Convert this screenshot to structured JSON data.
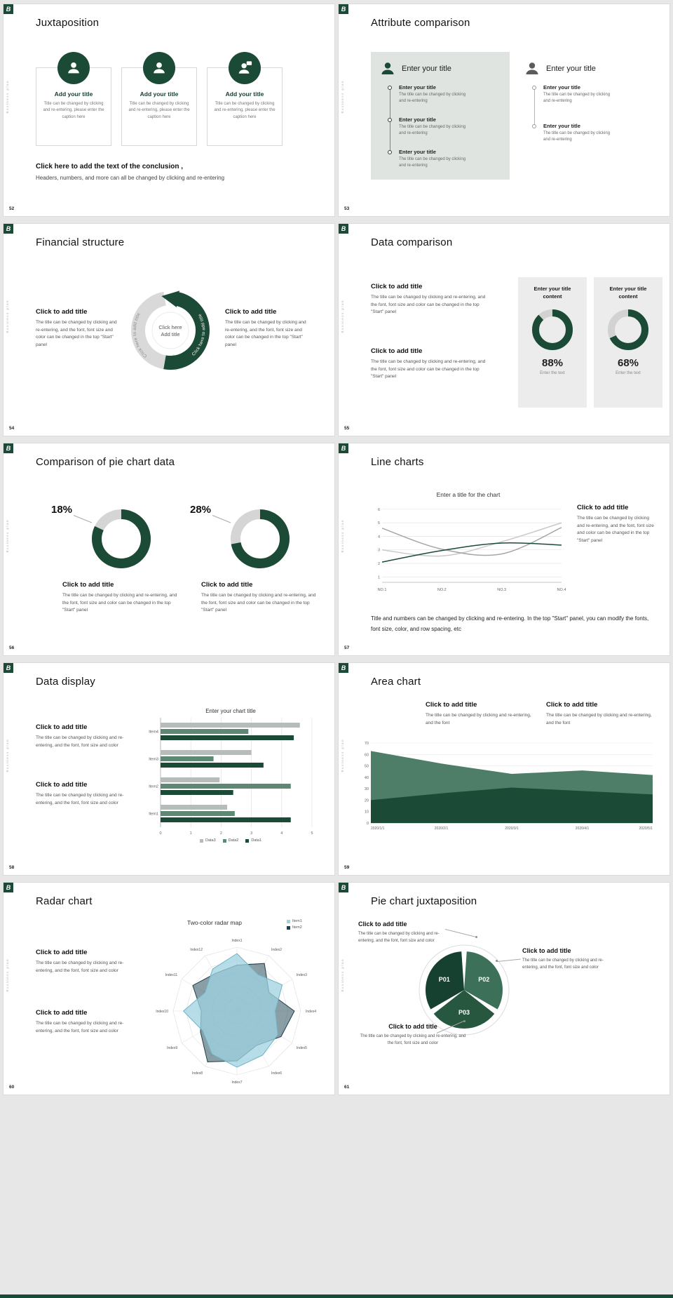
{
  "page": {
    "footer_color": "#1b4a37"
  },
  "brand": {
    "logo": "B",
    "vertical_text": "Business plan"
  },
  "colors": {
    "primary": "#1b4a37",
    "mid": "#4e7d68",
    "panel": "#dfe4e1",
    "track": "#d6d6d6"
  },
  "common": {
    "click_title": "Click to add title",
    "enter_title": "Enter your title",
    "add_title": "Add your title",
    "body_full": "The title can be changed by clicking and re-entering, and the font, font size and color can be changed in the top \"Start\" panel",
    "body_fontcolor": "The title can be changed by clicking and re-entering, and the font, font size and color",
    "body_font": "The title can be changed by clicking and re-entering, and the font",
    "body_short": "The title can be changed by clicking and re-entering"
  },
  "slides": {
    "s52": {
      "number": "52",
      "title": "Juxtaposition",
      "card_caption": "Title can be changed by clicking and re-entering, please enter the caption here",
      "conclusion_bold": "Click here to add the text of the conclusion ,",
      "conclusion_text": "Headers, numbers, and more can all be changed by clicking and re-entering"
    },
    "s53": {
      "number": "53",
      "title": "Attribute comparison"
    },
    "s54": {
      "number": "54",
      "title": "Financial structure",
      "arc_label": "Click here to add title",
      "center_line1": "Click here",
      "center_line2": "Add title"
    },
    "s55": {
      "number": "55",
      "title": "Data comparison",
      "panels": [
        {
          "heading": "Enter your title content",
          "percent_label": "88%",
          "note": "Enter the text",
          "chart": {
            "type": "donut",
            "percent": 88,
            "color": "#1b4a37",
            "track": "#d2d2d2",
            "thickness": 10
          }
        },
        {
          "heading": "Enter your title content",
          "percent_label": "68%",
          "note": "Enter the text",
          "chart": {
            "type": "donut",
            "percent": 68,
            "color": "#1b4a37",
            "track": "#d2d2d2",
            "thickness": 10
          }
        }
      ]
    },
    "s56": {
      "number": "56",
      "title": "Comparison of pie chart data",
      "charts": [
        {
          "value_label": "18%",
          "chart": {
            "type": "donut",
            "percent": 82,
            "color": "#1b4a37",
            "track": "#d5d5d5",
            "thickness": 14
          }
        },
        {
          "value_label": "28%",
          "chart": {
            "type": "donut",
            "percent": 72,
            "color": "#1b4a37",
            "track": "#d5d5d5",
            "thickness": 14
          }
        }
      ]
    },
    "s57": {
      "number": "57",
      "title": "Line charts",
      "chart_title": "Enter a title for the chart",
      "chart": {
        "type": "line",
        "x": [
          "NO.1",
          "NO.2",
          "NO.3",
          "NO.4"
        ],
        "ylim": [
          0.6,
          6.3
        ],
        "yticks": [
          1,
          2,
          3,
          4,
          5,
          6
        ],
        "series": [
          {
            "color": "#c9c9c9",
            "values": [
              3.0,
              2.55,
              3.6,
              5.0
            ]
          },
          {
            "color": "#a6a6a6",
            "values": [
              4.6,
              3.05,
              2.7,
              4.65
            ]
          },
          {
            "color": "#1b4a37",
            "values": [
              2.1,
              2.95,
              3.5,
              3.35
            ]
          }
        ]
      },
      "footer_text": "Title and numbers can be changed by clicking and re-entering. In the top \"Start\" panel, you can modify the fonts, font size, color, and row spacing, etc"
    },
    "s58": {
      "number": "58",
      "title": "Data display",
      "chart_title": "Enter your chart title",
      "chart": {
        "type": "bar",
        "categories": [
          "Item1",
          "Item2",
          "Item3",
          "Item4"
        ],
        "xmax": 5,
        "xticks": [
          0,
          1,
          2,
          3,
          4,
          5
        ],
        "series": [
          {
            "name": "Data3",
            "color": "#b6bcb9",
            "values": [
              2.2,
              1.95,
              3.0,
              4.6
            ]
          },
          {
            "name": "Data2",
            "color": "#5f8874",
            "values": [
              2.45,
              4.3,
              1.75,
              2.9
            ]
          },
          {
            "name": "Data1",
            "color": "#1b4a37",
            "values": [
              4.3,
              2.4,
              3.4,
              4.4
            ]
          }
        ]
      }
    },
    "s59": {
      "number": "59",
      "title": "Area chart",
      "chart": {
        "type": "area",
        "x": [
          "2020/1/1",
          "2020/2/1",
          "2020/3/1",
          "2020/4/1",
          "2020/5/1"
        ],
        "ylim": [
          0,
          70
        ],
        "yticks": [
          0,
          10,
          20,
          30,
          40,
          50,
          60,
          70
        ],
        "series": [
          {
            "color": "#4e7d68",
            "values": [
              63,
              52,
              43,
              46,
              42
            ]
          },
          {
            "color": "#1b4a37",
            "values": [
              20,
              26,
              31,
              28,
              25
            ]
          }
        ]
      }
    },
    "s60": {
      "number": "60",
      "title": "Radar chart",
      "chart_title": "Two-color radar map",
      "chart": {
        "type": "radar",
        "max": 5,
        "rings": 5,
        "axes": [
          "Index1",
          "Index2",
          "Index3",
          "Index4",
          "Index5",
          "Index6",
          "Index7",
          "Index8",
          "Index9",
          "Index10",
          "Index11",
          "Index12"
        ],
        "series": [
          {
            "name": "Item2",
            "color": "#1f3d4a",
            "fill": "#2a4f5c",
            "opacity": 0.55,
            "values": [
              3.6,
              4.3,
              2.9,
              4.5,
              4.0,
              3.1,
              3.9,
              4.6,
              3.3,
              2.8,
              4.0,
              3.4
            ]
          },
          {
            "name": "Item1",
            "color": "#6fb3c6",
            "fill": "#9fd2e0",
            "opacity": 0.75,
            "values": [
              4.5,
              3.3,
              4.1,
              3.0,
              3.7,
              4.0,
              4.4,
              3.9,
              3.1,
              4.2,
              2.9,
              3.8
            ]
          }
        ],
        "legend": [
          {
            "label": "Item1",
            "color": "#9fd2e0"
          },
          {
            "label": "Item2",
            "color": "#1f3d4a"
          }
        ]
      }
    },
    "s61": {
      "number": "61",
      "title": "Pie chart juxtaposition",
      "pie": {
        "type": "pie",
        "r": 55,
        "ring_r": 64,
        "segments": [
          {
            "label": "P01",
            "color": "#16402f",
            "from": 150,
            "to": 266
          },
          {
            "label": "P02",
            "color": "#3c7058",
            "from": 274,
            "to": 30
          },
          {
            "label": "P03",
            "color": "#27583f",
            "from": 38,
            "to": 142
          }
        ]
      }
    }
  }
}
